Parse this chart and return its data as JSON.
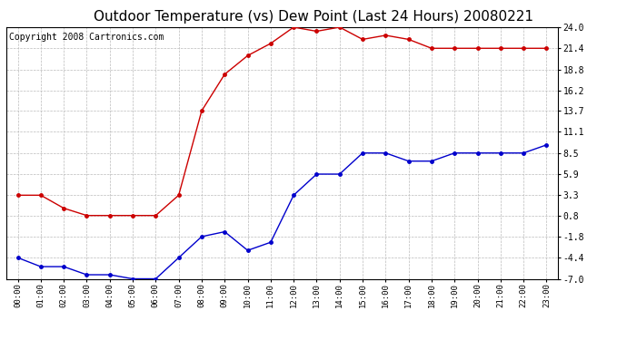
{
  "title": "Outdoor Temperature (vs) Dew Point (Last 24 Hours) 20080221",
  "copyright": "Copyright 2008 Cartronics.com",
  "x_labels": [
    "00:00",
    "01:00",
    "02:00",
    "03:00",
    "04:00",
    "05:00",
    "06:00",
    "07:00",
    "08:00",
    "09:00",
    "10:00",
    "11:00",
    "12:00",
    "13:00",
    "14:00",
    "15:00",
    "16:00",
    "17:00",
    "18:00",
    "19:00",
    "20:00",
    "21:00",
    "22:00",
    "23:00"
  ],
  "y_ticks": [
    -7.0,
    -4.4,
    -1.8,
    0.8,
    3.3,
    5.9,
    8.5,
    11.1,
    13.7,
    16.2,
    18.8,
    21.4,
    24.0
  ],
  "ylim": [
    -7.0,
    24.0
  ],
  "temp_red": [
    3.3,
    3.3,
    1.7,
    0.8,
    0.8,
    0.8,
    0.8,
    3.3,
    13.7,
    18.2,
    20.5,
    22.0,
    24.0,
    23.5,
    24.0,
    22.5,
    23.0,
    22.5,
    21.4,
    21.4,
    21.4,
    21.4,
    21.4,
    21.4
  ],
  "dew_blue": [
    -4.4,
    -5.5,
    -5.5,
    -6.5,
    -6.5,
    -7.0,
    -7.0,
    -4.4,
    -1.8,
    -1.2,
    -3.5,
    -2.5,
    3.3,
    5.9,
    5.9,
    8.5,
    8.5,
    7.5,
    7.5,
    8.5,
    8.5,
    8.5,
    8.5,
    9.5
  ],
  "line_color_red": "#cc0000",
  "line_color_blue": "#0000cc",
  "bg_color": "#ffffff",
  "grid_color": "#bbbbbb",
  "title_fontsize": 11,
  "copyright_fontsize": 7
}
